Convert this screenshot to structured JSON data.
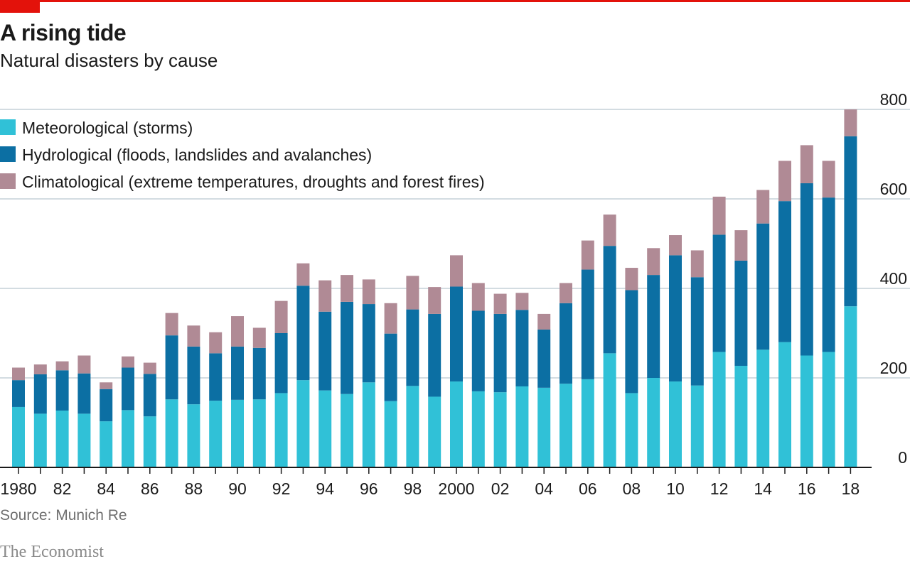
{
  "header": {
    "title": "A rising tide",
    "subtitle": "Natural disasters by cause"
  },
  "footer": {
    "source": "Source: Munich Re",
    "brand": "The Economist"
  },
  "colors": {
    "accent": "#e3120b",
    "meteorological": "#30c1d7",
    "hydrological": "#0c6fa3",
    "climatological": "#b08a95",
    "grid": "#b9c7cf"
  },
  "chart_data": {
    "type": "bar",
    "stacked": true,
    "ylim": [
      0,
      800
    ],
    "yticks": [
      0,
      200,
      400,
      600,
      800
    ],
    "ytick_labels": [
      "0",
      "200",
      "400",
      "600",
      "800"
    ],
    "axis_side": "right",
    "years": [
      1980,
      1981,
      1982,
      1983,
      1984,
      1985,
      1986,
      1987,
      1988,
      1989,
      1990,
      1991,
      1992,
      1993,
      1994,
      1995,
      1996,
      1997,
      1998,
      1999,
      2000,
      2001,
      2002,
      2003,
      2004,
      2005,
      2006,
      2007,
      2008,
      2009,
      2010,
      2011,
      2012,
      2013,
      2014,
      2015,
      2016,
      2017,
      2018
    ],
    "xtick_labels": [
      "1980",
      "",
      "82",
      "",
      "84",
      "",
      "86",
      "",
      "88",
      "",
      "90",
      "",
      "92",
      "",
      "94",
      "",
      "96",
      "",
      "98",
      "",
      "2000",
      "",
      "02",
      "",
      "04",
      "",
      "06",
      "",
      "08",
      "",
      "10",
      "",
      "12",
      "",
      "14",
      "",
      "16",
      "",
      "18"
    ],
    "legend_position": "top-left",
    "series": [
      {
        "name": "Meteorological (storms)",
        "color": "#30c1d7",
        "values": [
          135,
          120,
          127,
          120,
          103,
          128,
          114,
          152,
          141,
          149,
          151,
          152,
          166,
          195,
          172,
          164,
          190,
          148,
          182,
          158,
          192,
          170,
          168,
          181,
          178,
          187,
          197,
          255,
          166,
          200,
          192,
          183,
          258,
          227,
          263,
          280,
          250,
          258,
          360
        ]
      },
      {
        "name": "Hydrological (floods, landslides and avalanches)",
        "color": "#0c6fa3",
        "values": [
          60,
          88,
          90,
          90,
          72,
          95,
          95,
          143,
          129,
          106,
          119,
          115,
          134,
          211,
          176,
          206,
          175,
          151,
          171,
          185,
          212,
          180,
          175,
          171,
          130,
          180,
          245,
          240,
          230,
          230,
          282,
          242,
          262,
          235,
          282,
          315,
          385,
          345,
          380
        ]
      },
      {
        "name": "Climatological (extreme temperatures, droughts and forest fires)",
        "color": "#b08a95",
        "values": [
          28,
          22,
          20,
          40,
          15,
          25,
          25,
          50,
          47,
          47,
          68,
          45,
          72,
          50,
          70,
          60,
          55,
          68,
          75,
          60,
          70,
          62,
          45,
          38,
          35,
          45,
          65,
          70,
          50,
          60,
          45,
          60,
          85,
          68,
          75,
          90,
          85,
          82,
          60
        ]
      }
    ]
  }
}
